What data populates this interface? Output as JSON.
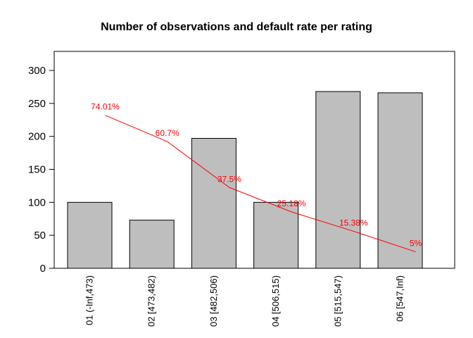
{
  "page": {
    "background_color": "#ffffff"
  },
  "chart_data": {
    "type": "bar",
    "title": "Number of observations and default rate per rating",
    "categories": [
      "01 (-Inf,473)",
      "02 [473,482)",
      "03 [482,506)",
      "04 [506,515)",
      "05 [515,547)",
      "06 [547,Inf)"
    ],
    "series": [
      {
        "name": "Number of observations",
        "type": "bar",
        "values": [
          100,
          73,
          197,
          100,
          268,
          266
        ]
      },
      {
        "name": "Default rate",
        "type": "line",
        "values_pct": [
          74.01,
          60.7,
          37.5,
          25.18,
          15.38,
          5
        ],
        "point_labels": [
          "74.01%",
          "60.7%",
          "37.5%",
          "25.18%",
          "15.38%",
          "5%"
        ]
      }
    ],
    "xlabel": "",
    "ylabel": "",
    "y_ticks": [
      0,
      50,
      100,
      150,
      200,
      250,
      300
    ],
    "ylim": [
      0,
      330
    ],
    "grid": false,
    "legend_position": "none",
    "colors": {
      "bar_fill": "#BEBEBE",
      "bar_border": "#000000",
      "line": "#FF0000",
      "line_label": "#FF0000",
      "axis": "#000000",
      "text": "#000000"
    }
  }
}
